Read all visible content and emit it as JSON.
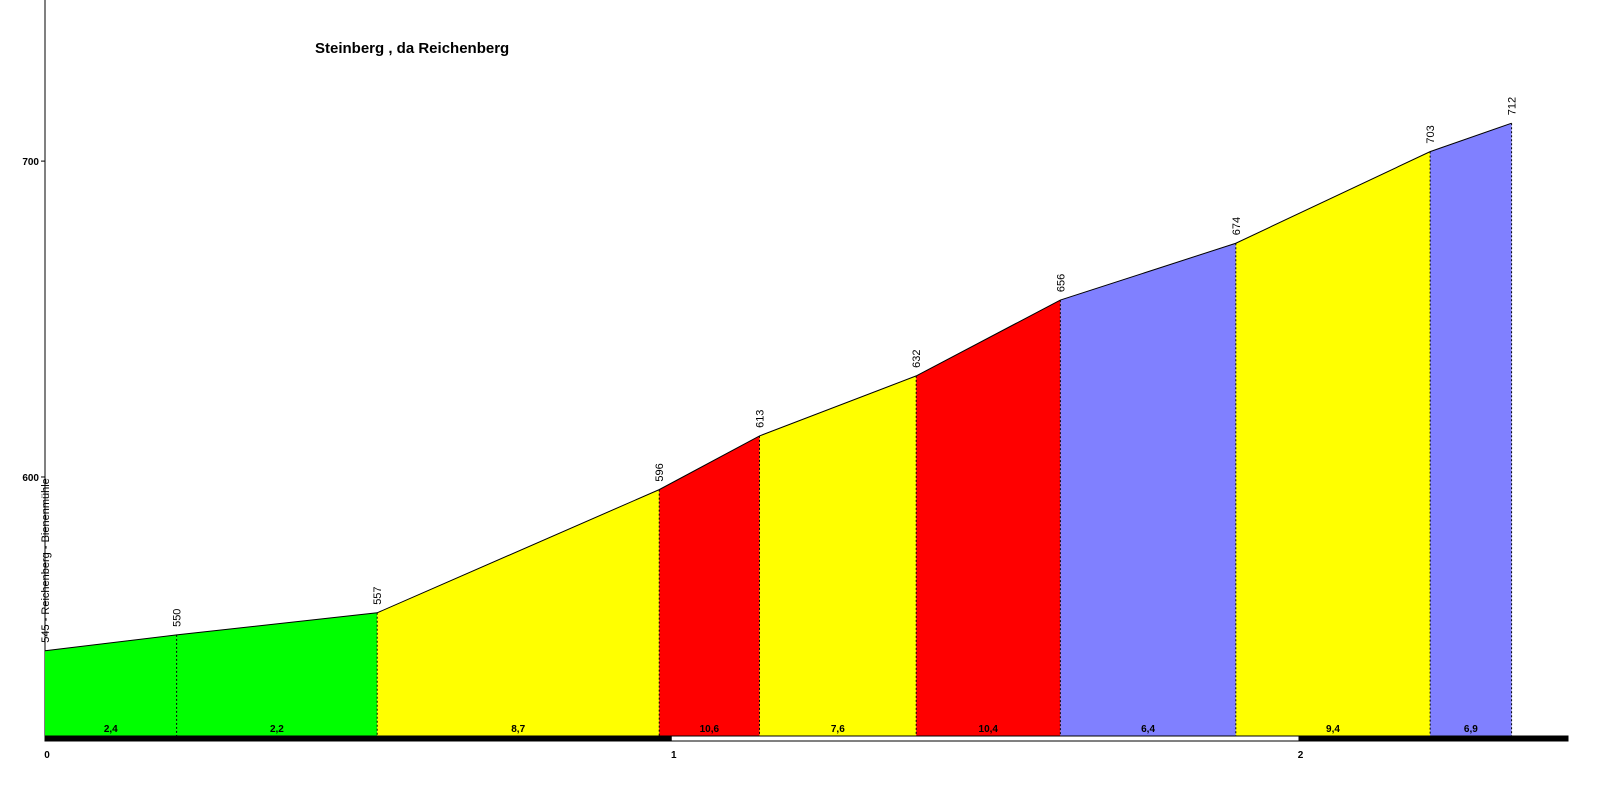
{
  "chart_data": {
    "type": "profile",
    "title": "Steinberg , da Reichenberg",
    "x": [
      0,
      0.21,
      0.53,
      0.98,
      1.14,
      1.39,
      1.62,
      1.9,
      2.21,
      2.34
    ],
    "values": [
      545,
      550,
      557,
      596,
      613,
      632,
      656,
      674,
      703,
      712
    ],
    "value_labels": [
      "545 - Reichenberg - Bienenmühle",
      "550",
      "557",
      "596",
      "613",
      "632",
      "656",
      "674",
      "703",
      "712"
    ],
    "segments": {
      "values": [
        2.4,
        2.2,
        8.7,
        10.6,
        7.6,
        10.4,
        6.4,
        9.4,
        6.9
      ],
      "value_labels": [
        "2,4",
        "2,2",
        "8,7",
        "10,6",
        "7,6",
        "10,4",
        "6,4",
        "9,4",
        "6,9"
      ],
      "colors": [
        "#00ff00",
        "#00ff00",
        "#ffff00",
        "#ff0000",
        "#ffff00",
        "#ff0000",
        "#8080ff",
        "#ffff00",
        "#8080ff"
      ]
    },
    "xlim": [
      0,
      2.43
    ],
    "xticks": [
      0,
      1,
      2
    ],
    "ylim": [
      518,
      751
    ],
    "yticks": [
      600,
      700
    ]
  }
}
